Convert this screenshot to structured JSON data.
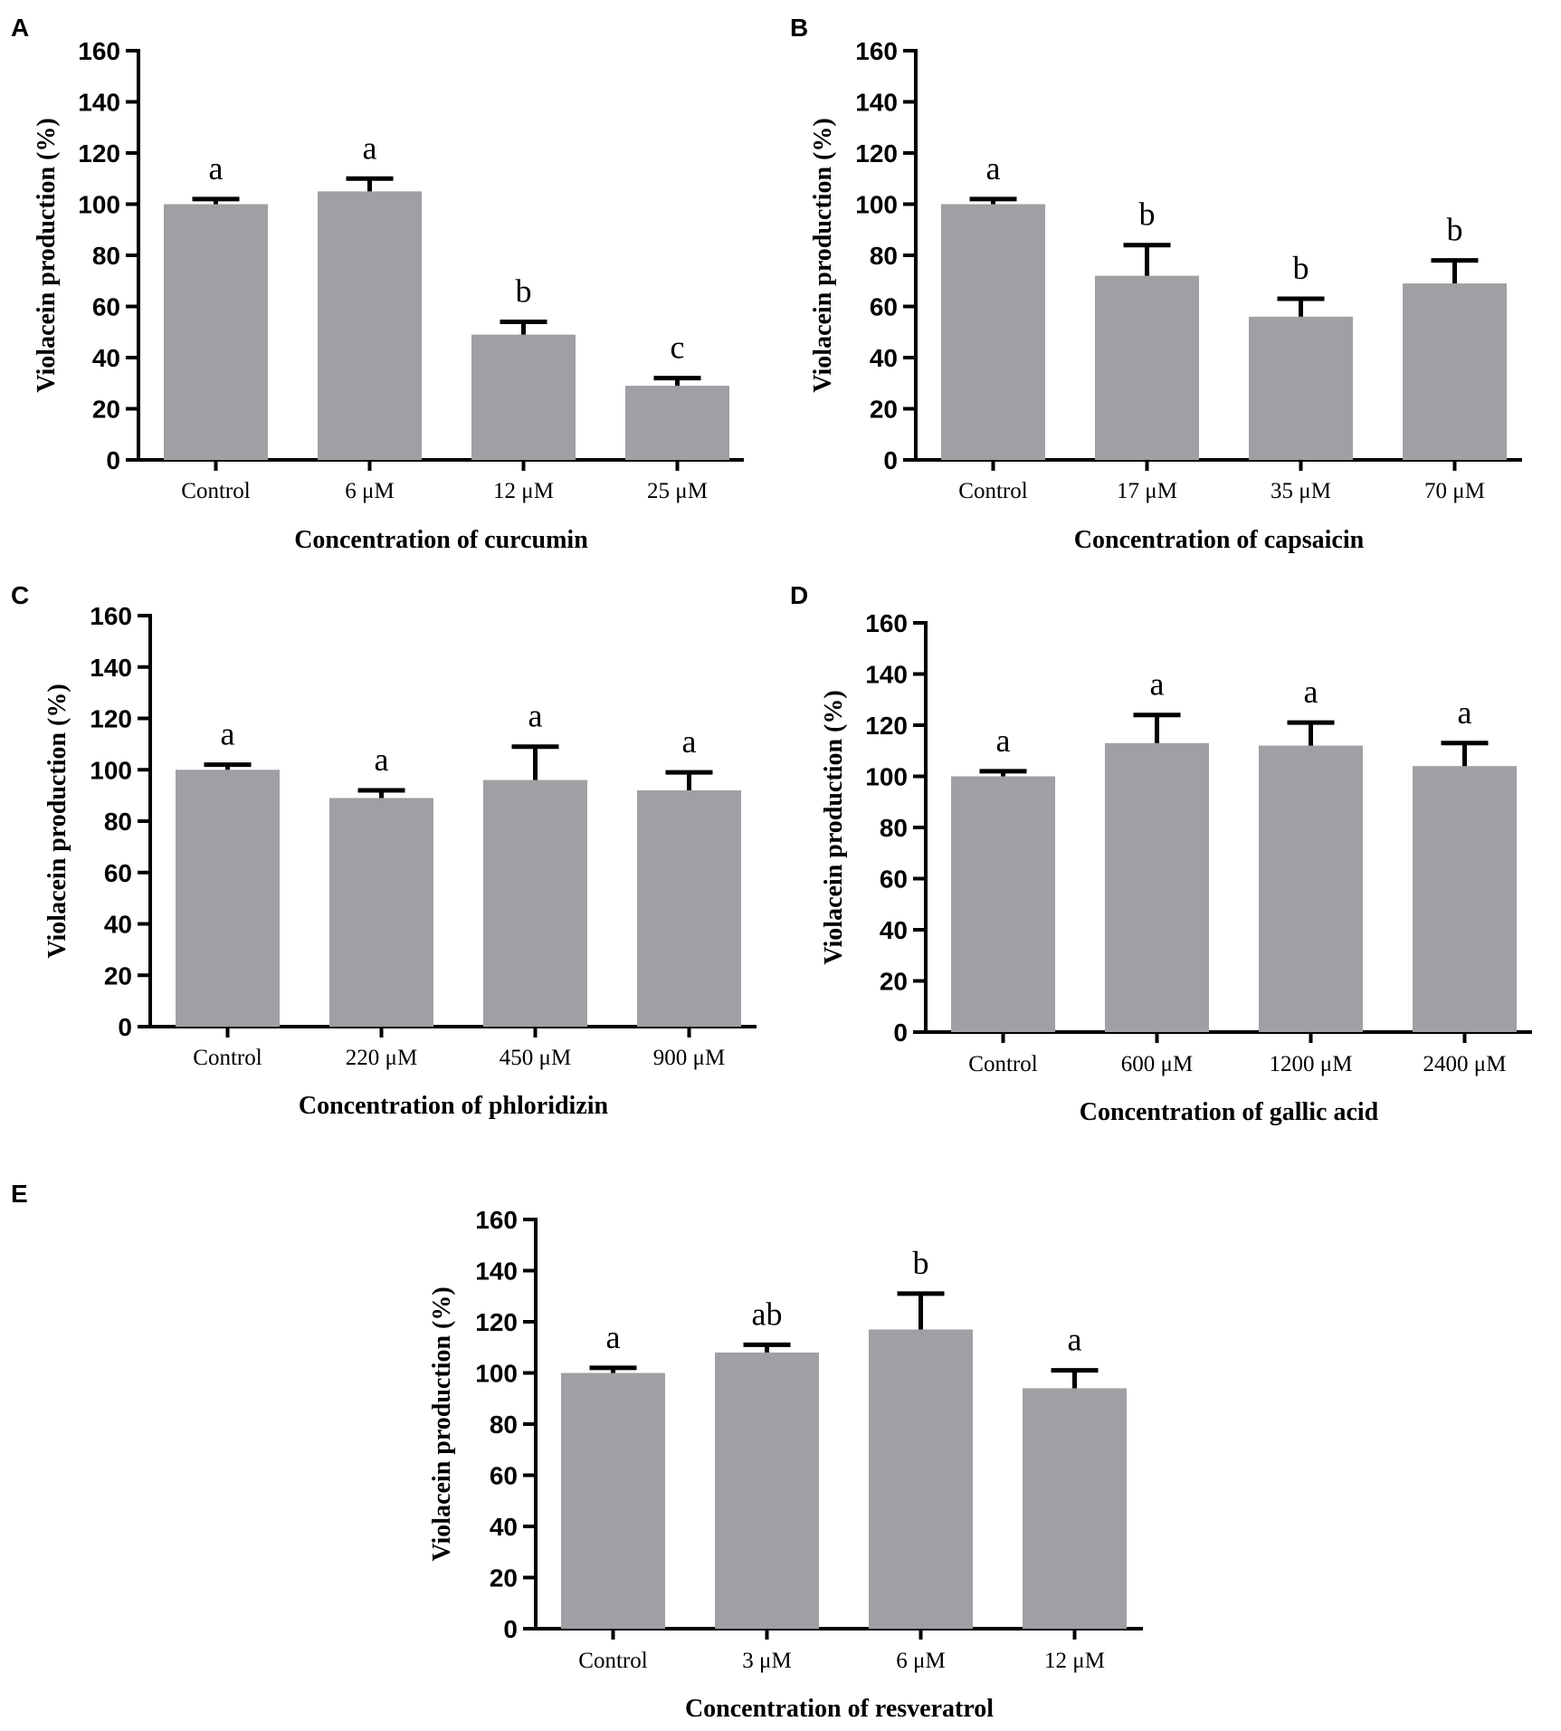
{
  "figure": {
    "colors": {
      "bar": "#a09fa4",
      "axis": "#000000",
      "background": "#ffffff"
    }
  },
  "chart_data": [
    {
      "panel": "A",
      "type": "bar",
      "title": "",
      "ylabel": "Violacein production (%)",
      "xlabel": "Concentration of curcumin",
      "ylim": [
        0,
        160
      ],
      "yticks": [
        0,
        20,
        40,
        60,
        80,
        100,
        120,
        140,
        160
      ],
      "categories": [
        "Control",
        "6 μM",
        "12 μM",
        "25 μM"
      ],
      "values": [
        100,
        105,
        49,
        29
      ],
      "errors": [
        2,
        5,
        5,
        3
      ],
      "significance": [
        "a",
        "a",
        "b",
        "c"
      ]
    },
    {
      "panel": "B",
      "type": "bar",
      "title": "",
      "ylabel": "Violacein production (%)",
      "xlabel": "Concentration of capsaicin",
      "ylim": [
        0,
        160
      ],
      "yticks": [
        0,
        20,
        40,
        60,
        80,
        100,
        120,
        140,
        160
      ],
      "categories": [
        "Control",
        "17 μM",
        "35 μM",
        "70 μM"
      ],
      "values": [
        100,
        72,
        56,
        69
      ],
      "errors": [
        2,
        12,
        7,
        9
      ],
      "significance": [
        "a",
        "b",
        "b",
        "b"
      ]
    },
    {
      "panel": "C",
      "type": "bar",
      "title": "",
      "ylabel": "Violacein production (%)",
      "xlabel": "Concentration of phloridizin",
      "ylim": [
        0,
        160
      ],
      "yticks": [
        0,
        20,
        40,
        60,
        80,
        100,
        120,
        140,
        160
      ],
      "categories": [
        "Control",
        "220  μM",
        "450  μM",
        "900 μM"
      ],
      "values": [
        100,
        89,
        96,
        92
      ],
      "errors": [
        2,
        3,
        13,
        7
      ],
      "significance": [
        "a",
        "a",
        "a",
        "a"
      ]
    },
    {
      "panel": "D",
      "type": "bar",
      "title": "",
      "ylabel": "Violacein production (%)",
      "xlabel": "Concentration of gallic acid",
      "ylim": [
        0,
        160
      ],
      "yticks": [
        0,
        20,
        40,
        60,
        80,
        100,
        120,
        140,
        160
      ],
      "categories": [
        "Control",
        "600  μM",
        "1200  μM",
        "2400  μM"
      ],
      "values": [
        100,
        113,
        112,
        104
      ],
      "errors": [
        2,
        11,
        9,
        9
      ],
      "significance": [
        "a",
        "a",
        "a",
        "a"
      ]
    },
    {
      "panel": "E",
      "type": "bar",
      "title": "",
      "ylabel": "Violacein production (%)",
      "xlabel": "Concentration of resveratrol",
      "ylim": [
        0,
        160
      ],
      "yticks": [
        0,
        20,
        40,
        60,
        80,
        100,
        120,
        140,
        160
      ],
      "categories": [
        "Control",
        "3 μM",
        "6 μM",
        "12 μM"
      ],
      "values": [
        100,
        108,
        117,
        94
      ],
      "errors": [
        2,
        3,
        14,
        7
      ],
      "significance": [
        "a",
        "ab",
        "b",
        "a"
      ]
    }
  ]
}
